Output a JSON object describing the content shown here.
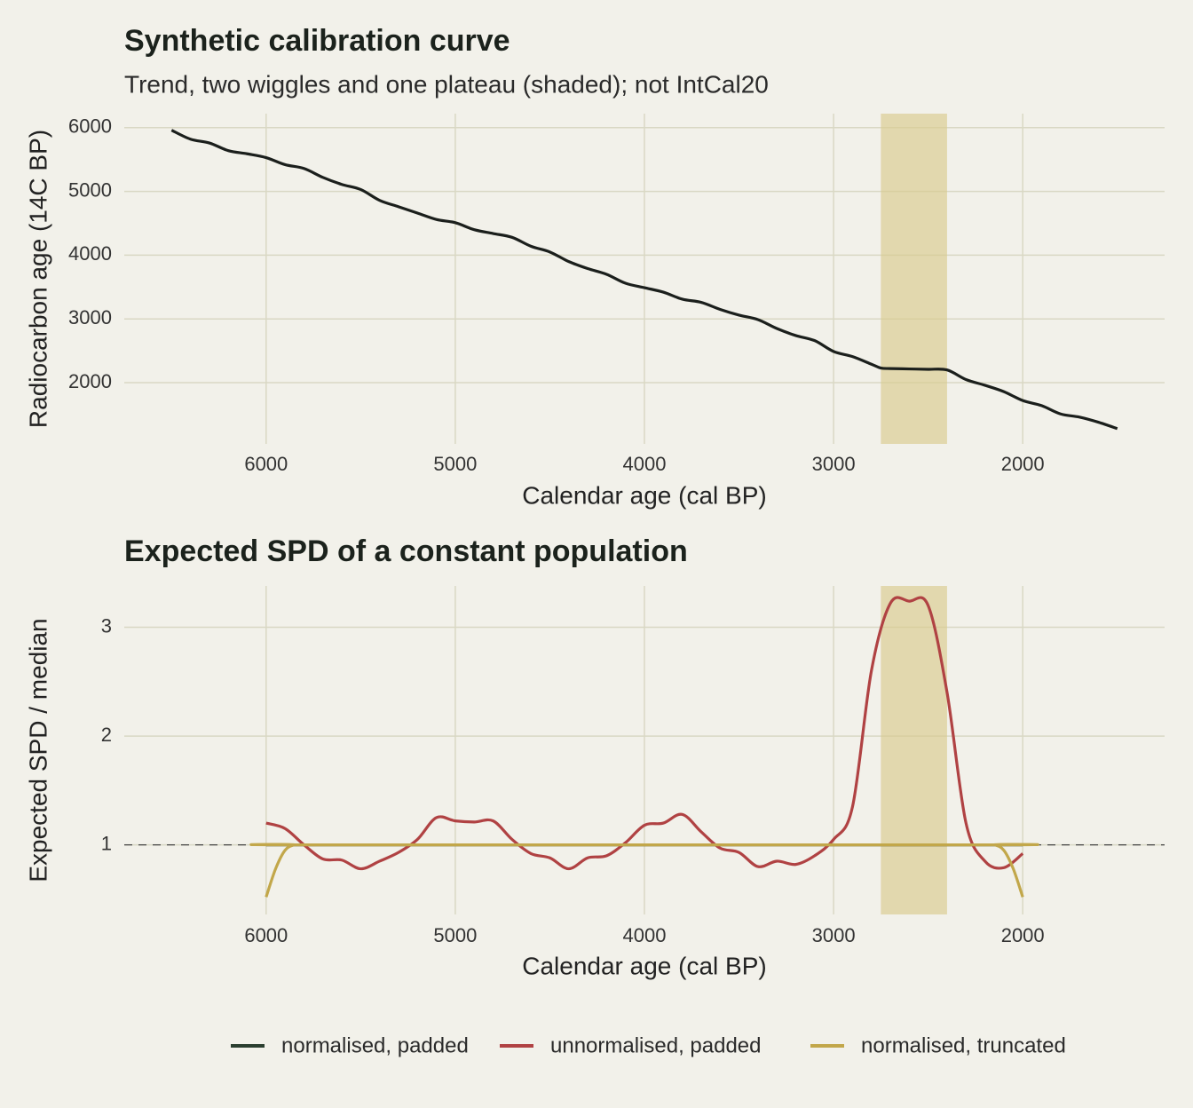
{
  "chart_data": [
    {
      "type": "line",
      "title": "Synthetic calibration curve",
      "subtitle": "Trend, two wiggles and one plateau (shaded); not IntCal20",
      "x_label": "Calendar age (cal BP)",
      "y_label": "Radiocarbon age (14C BP)",
      "x": [
        6500,
        6400,
        6300,
        6200,
        6100,
        6000,
        5900,
        5800,
        5700,
        5600,
        5500,
        5400,
        5300,
        5200,
        5100,
        5000,
        4900,
        4800,
        4700,
        4600,
        4500,
        4400,
        4300,
        4200,
        4100,
        4000,
        3900,
        3800,
        3700,
        3600,
        3500,
        3400,
        3300,
        3200,
        3100,
        3000,
        2900,
        2800,
        2750,
        2700,
        2600,
        2500,
        2400,
        2300,
        2200,
        2100,
        2000,
        1900,
        1800,
        1700,
        1600,
        1500
      ],
      "values": [
        5960,
        5820,
        5760,
        5640,
        5590,
        5530,
        5420,
        5360,
        5220,
        5110,
        5030,
        4860,
        4760,
        4660,
        4560,
        4510,
        4400,
        4340,
        4280,
        4140,
        4050,
        3900,
        3790,
        3700,
        3560,
        3490,
        3420,
        3310,
        3260,
        3150,
        3060,
        2990,
        2850,
        2740,
        2660,
        2490,
        2410,
        2290,
        2230,
        2222,
        2216,
        2210,
        2200,
        2050,
        1960,
        1860,
        1720,
        1640,
        1510,
        1460,
        1380,
        1280
      ],
      "color": "#1b1f1c",
      "xlim": [
        6750,
        1250
      ],
      "ylim": [
        1040,
        6220
      ],
      "xticks": [
        6000,
        5000,
        4000,
        3000,
        2000
      ],
      "yticks": [
        2000,
        3000,
        4000,
        5000,
        6000
      ],
      "shade": [
        2750,
        2400
      ],
      "grid": true
    },
    {
      "type": "line",
      "title": "Expected SPD of a constant population",
      "x_label": "Calendar age (cal BP)",
      "y_label": "Expected SPD / median",
      "series": [
        {
          "name": "normalised, padded",
          "color": "#2b3f30",
          "x": [
            6000,
            2000
          ],
          "values": [
            1,
            1
          ]
        },
        {
          "name": "unnormalised, padded",
          "color": "#b04243",
          "x": [
            6000,
            5900,
            5800,
            5700,
            5600,
            5500,
            5400,
            5300,
            5200,
            5100,
            5000,
            4900,
            4800,
            4700,
            4600,
            4500,
            4400,
            4300,
            4200,
            4100,
            4000,
            3900,
            3800,
            3700,
            3600,
            3500,
            3400,
            3300,
            3200,
            3100,
            3000,
            2900,
            2800,
            2700,
            2600,
            2500,
            2400,
            2300,
            2200,
            2100,
            2000
          ],
          "values": [
            1.2,
            1.15,
            1.0,
            0.87,
            0.86,
            0.78,
            0.85,
            0.93,
            1.05,
            1.25,
            1.22,
            1.21,
            1.22,
            1.05,
            0.92,
            0.88,
            0.78,
            0.88,
            0.9,
            1.02,
            1.18,
            1.2,
            1.28,
            1.12,
            0.97,
            0.93,
            0.8,
            0.85,
            0.82,
            0.9,
            1.05,
            1.35,
            2.6,
            3.22,
            3.24,
            3.2,
            2.4,
            1.2,
            0.85,
            0.79,
            0.92
          ]
        },
        {
          "name": "normalised, truncated",
          "color": "#c2a74a",
          "x": [
            6000,
            5950,
            5900,
            5850,
            5800,
            2200,
            2150,
            2100,
            2050,
            2000
          ],
          "values": [
            0.52,
            0.78,
            0.95,
            1.0,
            1.0,
            1.0,
            1.0,
            0.95,
            0.78,
            0.52
          ]
        }
      ],
      "xlim": [
        6750,
        1250
      ],
      "ylim": [
        0.36,
        3.38
      ],
      "xticks": [
        6000,
        5000,
        4000,
        3000,
        2000
      ],
      "yticks": [
        1,
        2,
        3
      ],
      "hline": 1,
      "shade": [
        2750,
        2400
      ],
      "grid": true
    }
  ]
}
